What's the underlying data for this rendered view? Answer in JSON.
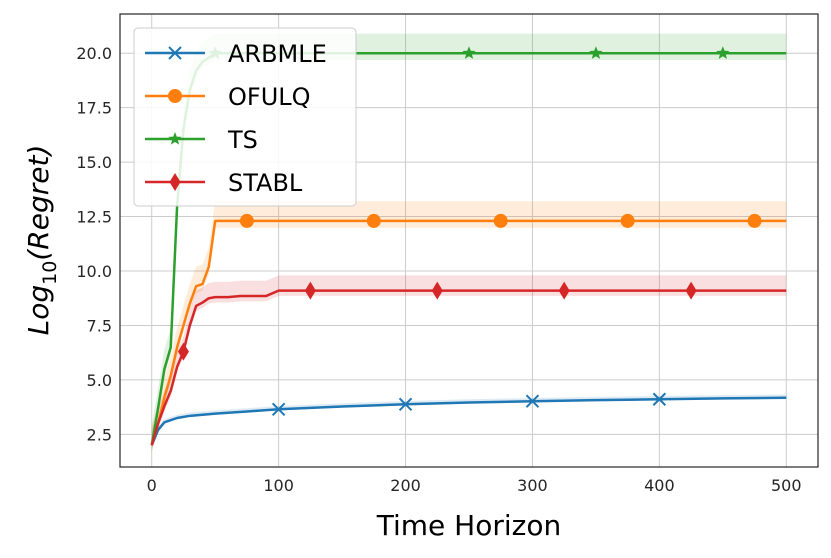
{
  "chart_data": {
    "type": "line",
    "xlabel": "Time Horizon",
    "ylabel": {
      "pre": "Log",
      "sub": "10",
      "post": "(Regret)"
    },
    "xlim": [
      -25,
      525
    ],
    "ylim": [
      1.0,
      21.8
    ],
    "xticks": [
      0,
      100,
      200,
      300,
      400,
      500
    ],
    "yticks": [
      2.5,
      5.0,
      7.5,
      10.0,
      12.5,
      15.0,
      17.5,
      20.0
    ],
    "ytick_labels": [
      "2.5",
      "5.0",
      "7.5",
      "10.0",
      "12.5",
      "15.0",
      "17.5",
      "20.0"
    ],
    "grid": true,
    "legend_position": "top-left",
    "series": [
      {
        "name": "ARBMLE",
        "color": "#1f77b4",
        "marker": "x",
        "x": [
          0,
          5,
          10,
          20,
          30,
          50,
          75,
          100,
          150,
          200,
          250,
          300,
          350,
          400,
          450,
          500
        ],
        "y": [
          2.0,
          2.7,
          3.05,
          3.25,
          3.35,
          3.45,
          3.55,
          3.65,
          3.78,
          3.88,
          3.96,
          4.02,
          4.07,
          4.11,
          4.15,
          4.18
        ],
        "band": 0.15,
        "marker_x": [
          100,
          200,
          300,
          400
        ]
      },
      {
        "name": "OFULQ",
        "color": "#ff7f0e",
        "marker": "o",
        "x": [
          0,
          5,
          10,
          15,
          20,
          25,
          30,
          35,
          40,
          45,
          50,
          60,
          80,
          500
        ],
        "y": [
          2.0,
          3.0,
          4.2,
          5.2,
          6.5,
          7.5,
          8.5,
          9.3,
          9.4,
          10.2,
          12.3,
          12.3,
          12.3,
          12.3
        ],
        "band": 0.9,
        "marker_x": [
          75,
          175,
          275,
          375,
          475
        ]
      },
      {
        "name": "TS",
        "color": "#2ca02c",
        "marker": "*",
        "x": [
          0,
          5,
          10,
          15,
          20,
          25,
          30,
          35,
          40,
          45,
          50,
          60,
          80,
          500
        ],
        "y": [
          2.0,
          3.7,
          5.5,
          6.5,
          13.0,
          16.5,
          18.3,
          19.2,
          19.6,
          19.8,
          20.0,
          20.0,
          20.0,
          20.0
        ],
        "band": 0.9,
        "marker_x": [
          50,
          250,
          350,
          450
        ]
      },
      {
        "name": "STABL",
        "color": "#d62728",
        "marker": "d",
        "x": [
          0,
          5,
          10,
          15,
          20,
          25,
          30,
          35,
          40,
          45,
          50,
          60,
          70,
          80,
          90,
          100,
          500
        ],
        "y": [
          2.0,
          3.0,
          3.8,
          4.5,
          5.6,
          6.3,
          7.5,
          8.4,
          8.55,
          8.75,
          8.8,
          8.8,
          8.85,
          8.85,
          8.85,
          9.1,
          9.1
        ],
        "band": 0.7,
        "marker_x": [
          25,
          125,
          225,
          325,
          425
        ]
      }
    ]
  }
}
